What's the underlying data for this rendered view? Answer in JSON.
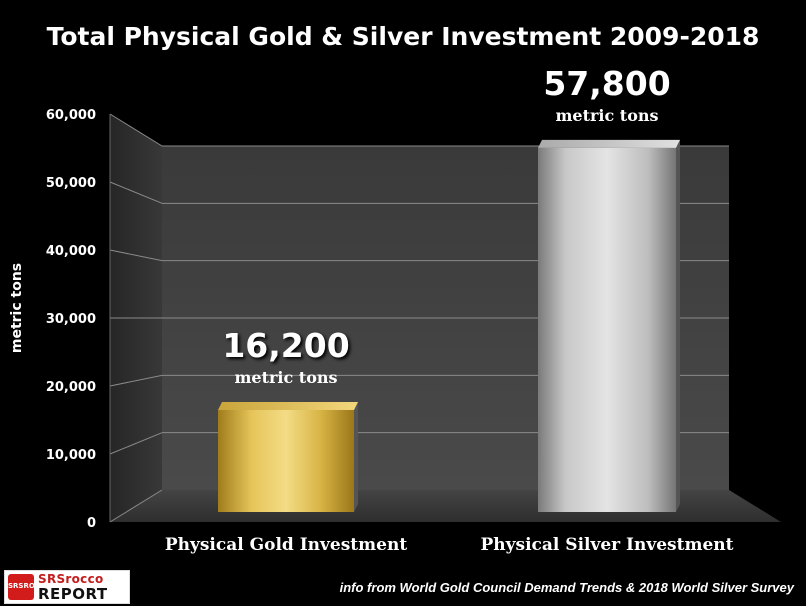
{
  "chart_data": {
    "type": "bar",
    "title": "Total Physical Gold & Silver Investment 2009-2018",
    "ylabel": "metric tons",
    "xlabel": "",
    "categories": [
      "Physical Gold Investment",
      "Physical Silver Investment"
    ],
    "values": [
      16200,
      57800
    ],
    "value_labels": [
      "16,200",
      "57,800"
    ],
    "value_unit": "metric tons",
    "ylim": [
      0,
      60000
    ],
    "yticks": [
      0,
      10000,
      20000,
      30000,
      40000,
      50000,
      60000
    ],
    "ytick_labels": [
      "0",
      "10,000",
      "20,000",
      "30,000",
      "40,000",
      "50,000",
      "60,000"
    ],
    "grid": true,
    "legend": "none",
    "bar_colors": [
      "#d4b03c",
      "#b9b9b9"
    ]
  },
  "source_note": "info from World Gold Council Demand Trends & 2018 World Silver Survey",
  "logo": {
    "line1": "SRSrocco",
    "line2": "REPORT",
    "mark": "SRSROCCO"
  }
}
